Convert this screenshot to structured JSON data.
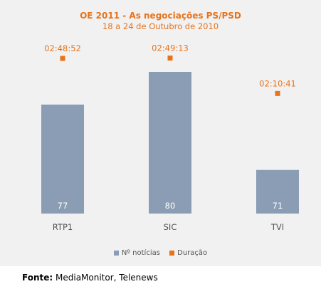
{
  "chart_data": {
    "type": "bar",
    "title": "OE 2011 - As negociações PS/PSD",
    "subtitle": "18 a 24 de Outubro de 2010",
    "categories": [
      "RTP1",
      "SIC",
      "TVI"
    ],
    "series": [
      {
        "name": "Nº notícias",
        "kind": "bar",
        "values": [
          77,
          80,
          71
        ],
        "labels": [
          "77",
          "80",
          "71"
        ]
      },
      {
        "name": "Duração",
        "kind": "marker",
        "values_seconds": [
          10132,
          10153,
          7841
        ],
        "labels": [
          "02:48:52",
          "02:49:13",
          "02:10:41"
        ]
      }
    ],
    "bar_axis_range": [
      67,
      80
    ],
    "duration_axis_range_seconds": [
      0,
      10600
    ],
    "grid": false,
    "legend": "bottom",
    "colors": {
      "bar": "#8b9db4",
      "marker": "#e8731a",
      "bar_label": "#ffffff",
      "category_label": "#555555",
      "title": "#e8731a",
      "background": "#f1f1f1"
    }
  },
  "source": {
    "label": "Fonte:",
    "text": "MediaMonitor, Telenews"
  }
}
